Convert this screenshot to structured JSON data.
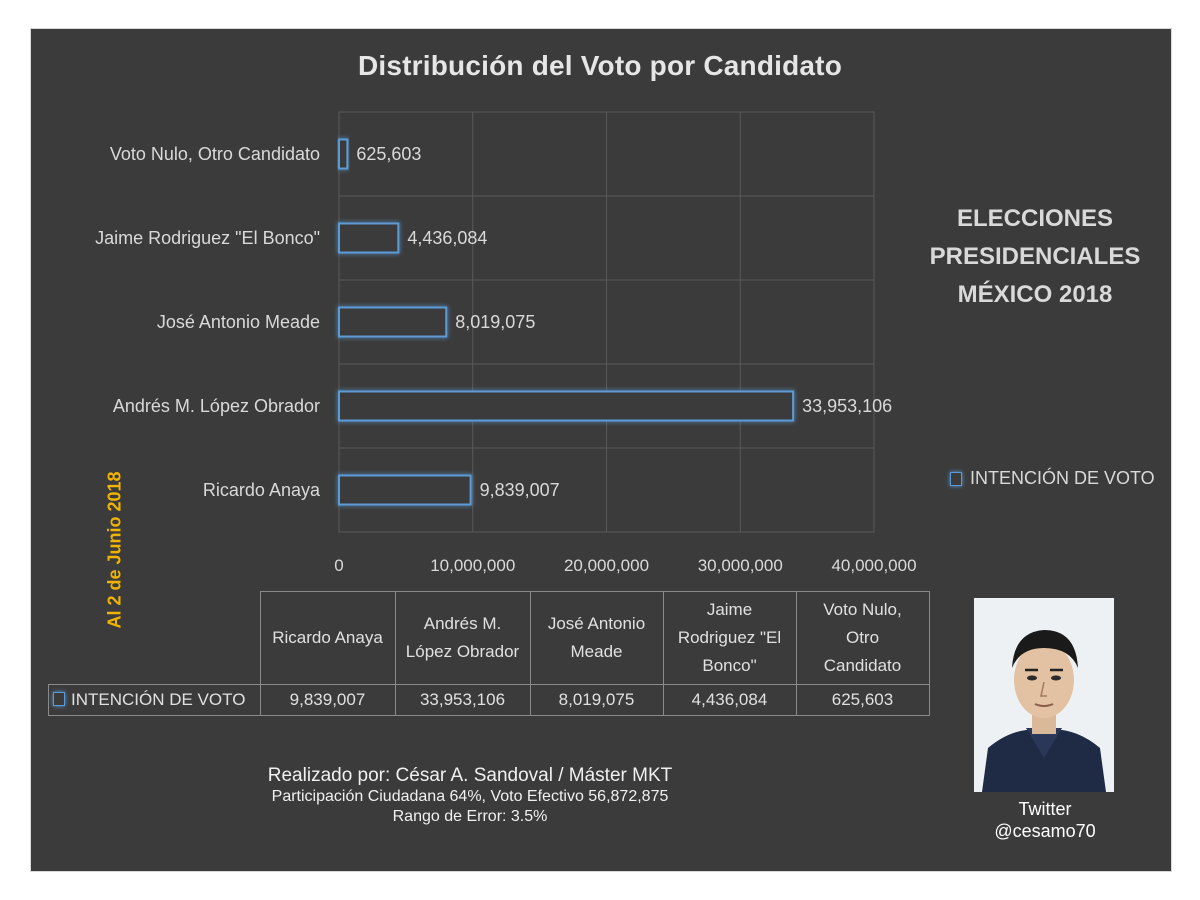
{
  "chart_data": {
    "type": "bar",
    "orientation": "horizontal",
    "title": "Distribución del Voto por Candidato",
    "categories": [
      "Ricardo Anaya",
      "Andrés M. López Obrador",
      "José Antonio Meade",
      "Jaime Rodriguez \"El Bonco\"",
      "Voto Nulo, Otro Candidato"
    ],
    "series": [
      {
        "name": "INTENCIÓN DE VOTO",
        "values": [
          9839007,
          33953106,
          8019075,
          4436084,
          625603
        ],
        "labels": [
          "9,839,007",
          "33,953,106",
          "8,019,075",
          "4,436,084",
          "625,603"
        ]
      }
    ],
    "xlim": [
      0,
      40000000
    ],
    "xticks": [
      0,
      10000000,
      20000000,
      30000000,
      40000000
    ],
    "xtick_labels": [
      "0",
      "10,000,000",
      "20,000,000",
      "30,000,000",
      "40,000,000"
    ],
    "grid": true,
    "legend": "right",
    "bar_color": "#5b9bd5"
  },
  "side_title": [
    "ELECCIONES",
    "PRESIDENCIALES",
    "MÉXICO 2018"
  ],
  "date_label": "Al 2 de Junio 2018",
  "legend_label": "INTENCIÓN DE VOTO",
  "data_table": {
    "headers": [
      [
        "Ricardo Anaya"
      ],
      [
        "Andrés M.",
        "López Obrador"
      ],
      [
        "José Antonio",
        "Meade"
      ],
      [
        "Jaime",
        "Rodriguez \"El",
        "Bonco\""
      ],
      [
        "Voto Nulo,",
        "Otro",
        "Candidato"
      ]
    ],
    "row_label": "INTENCIÓN DE VOTO",
    "values": [
      "9,839,007",
      "33,953,106",
      "8,019,075",
      "4,436,084",
      "625,603"
    ]
  },
  "credits": {
    "line1": "Realizado por: César A. Sandoval / Máster MKT",
    "line2": "Participación Ciudadana 64%, Voto Efectivo 56,872,875",
    "line3": "Rango de Error: 3.5%"
  },
  "twitter": {
    "line1": "Twitter",
    "handle": "@cesamo70"
  },
  "colors": {
    "background": "#3b3b3b",
    "accent": "#5b9bd5",
    "date_label": "#f0b400"
  }
}
